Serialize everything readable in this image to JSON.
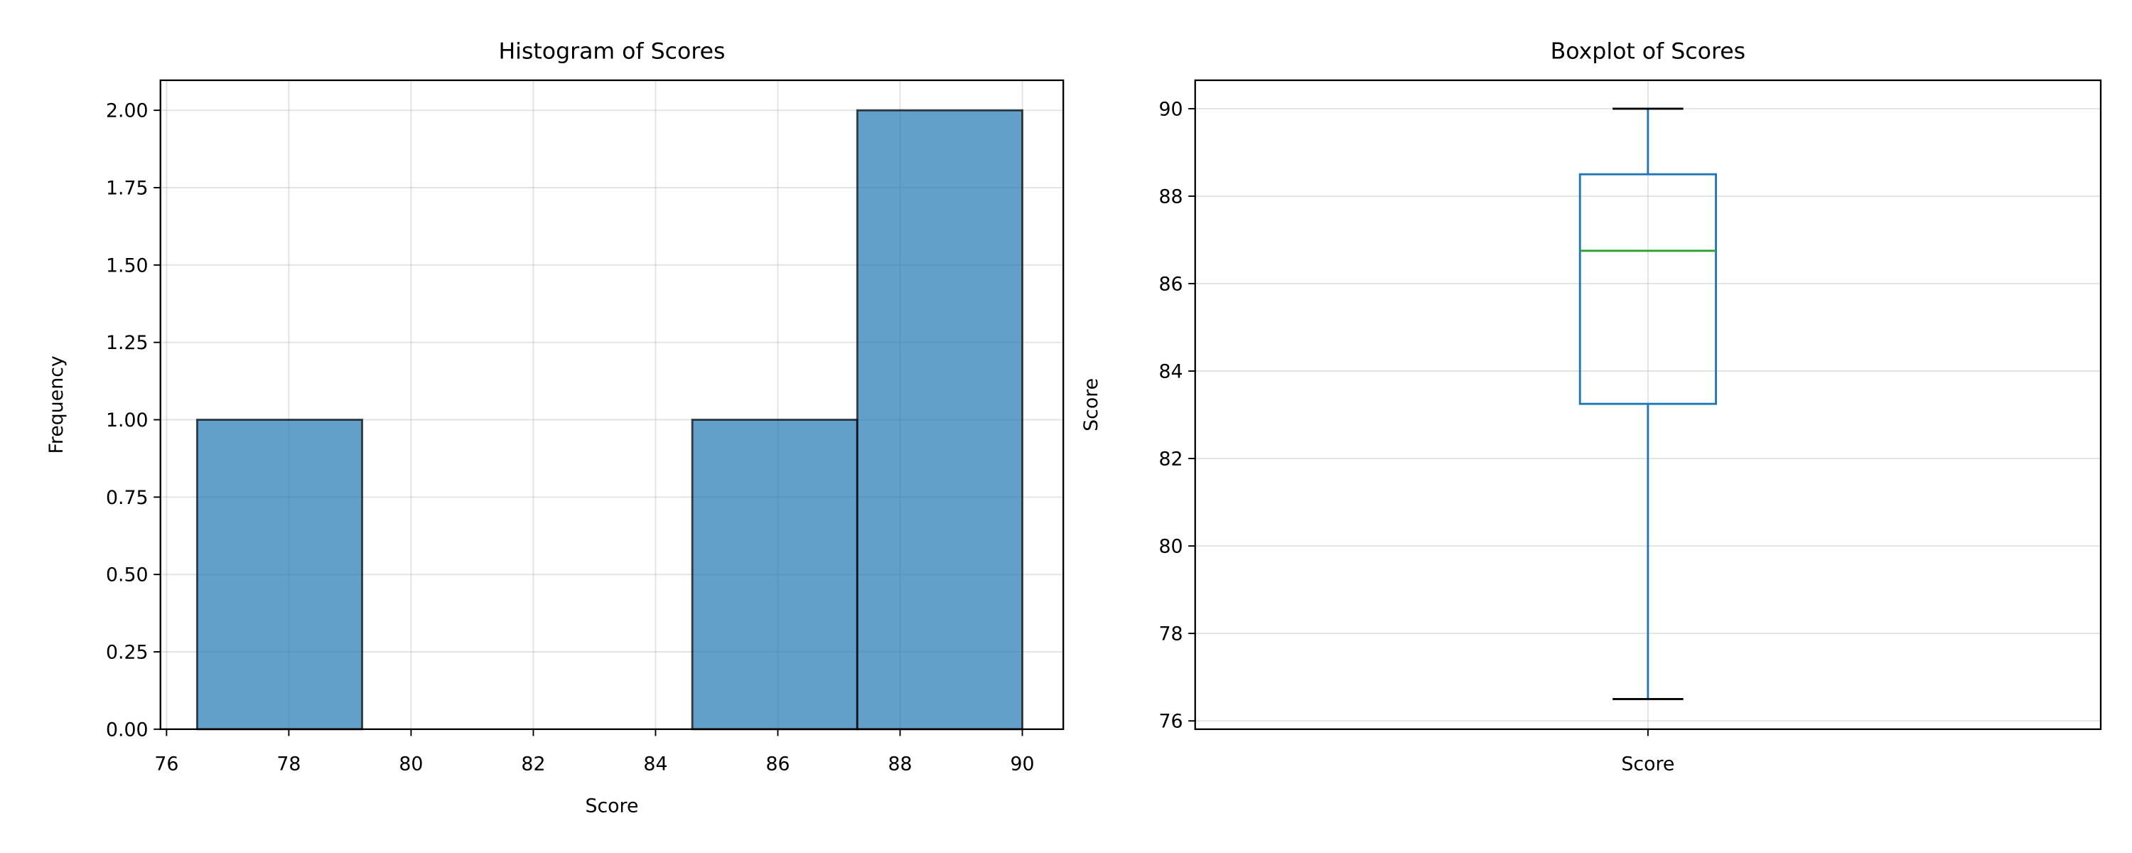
{
  "chart_data": [
    {
      "type": "histogram",
      "title": "Histogram of Scores",
      "x_label": "Score",
      "y_label": "Frequency",
      "bins": [
        76.5,
        79.2,
        81.9,
        84.6,
        87.3,
        90.0
      ],
      "counts": [
        1,
        0,
        0,
        1,
        2
      ],
      "color": "#1f77b4",
      "edgecolor": "#000000",
      "grid": true,
      "xlim": [
        75.9,
        90.67
      ],
      "ylim": [
        0,
        2.097
      ],
      "xticks": [
        76,
        78,
        80,
        82,
        84,
        86,
        88,
        90
      ],
      "yticks": [
        {
          "value": 0,
          "label": "0.00"
        },
        {
          "value": 0.25,
          "label": "0.25"
        },
        {
          "value": 0.5,
          "label": "0.50"
        },
        {
          "value": 0.75,
          "label": "0.75"
        },
        {
          "value": 1,
          "label": "1.00"
        },
        {
          "value": 1.25,
          "label": "1.25"
        },
        {
          "value": 1.5,
          "label": "1.50"
        },
        {
          "value": 1.75,
          "label": "1.75"
        },
        {
          "value": 2,
          "label": "2.00"
        }
      ]
    },
    {
      "type": "box",
      "title": "Boxplot of Scores",
      "y_label": "Score",
      "boxes": [
        {
          "name": "Score",
          "whislo": 76.5,
          "q1": 83.25,
          "med": 86.75,
          "q3": 88.5,
          "whishi": 90
        }
      ],
      "color": "#1f77b4",
      "median_color": "#2ca02c",
      "grid": true,
      "ylim": [
        75.81,
        90.65
      ],
      "yticks": [
        76,
        78,
        80,
        82,
        84,
        86,
        88,
        90
      ]
    }
  ]
}
